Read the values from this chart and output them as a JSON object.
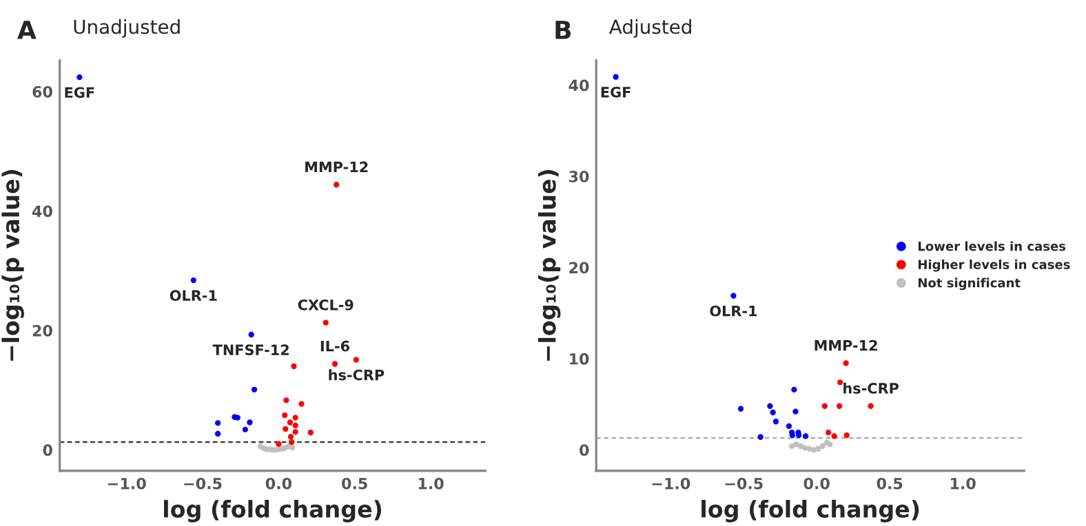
{
  "chart_data": [
    {
      "type": "scatter",
      "title": "Unadjusted",
      "xlabel": "log (fold change)",
      "ylabel": "−log₁₀(p value)",
      "annotations": [
        "A",
        {
          "text": "EGF",
          "x": -1.31,
          "y": 62.4
        },
        {
          "text": "MMP-12",
          "x": 0.38,
          "y": 44.4
        },
        {
          "text": "OLR-1",
          "x": -0.56,
          "y": 28.4
        },
        {
          "text": "CXCL-9",
          "x": 0.31,
          "y": 21.3
        },
        {
          "text": "TNFSF-12",
          "x": -0.18,
          "y": 19.3
        },
        {
          "text": "IL-6",
          "x": 0.37,
          "y": 14.4
        },
        {
          "text": "hs-CRP",
          "x": 0.51,
          "y": 15.1
        }
      ],
      "series": [
        {
          "color": "#0000ff",
          "x": [
            -1.31,
            -0.56,
            -0.18,
            -0.16,
            -0.4,
            -0.4,
            -0.29,
            -0.27,
            -0.19,
            -0.22
          ],
          "values": [
            62.4,
            28.4,
            19.3,
            10.1,
            4.5,
            2.7,
            5.5,
            5.4,
            4.6,
            3.4
          ]
        },
        {
          "color": "#ff0000",
          "x": [
            0.38,
            0.31,
            0.37,
            0.51,
            0.1,
            0.05,
            0.15,
            0.04,
            0.11,
            0.075,
            0.11,
            0.045,
            0.11,
            0.08,
            0.21,
            0.085,
            0.0
          ],
          "values": [
            44.4,
            21.3,
            14.4,
            15.1,
            14.0,
            8.3,
            7.7,
            5.8,
            5.4,
            4.6,
            4.1,
            3.5,
            3.0,
            2.2,
            2.9,
            1.3,
            1.0
          ]
        },
        {
          "color": "#c0c0c0",
          "x": [
            -0.12,
            -0.1,
            -0.08,
            -0.06,
            -0.04,
            -0.02,
            0.0,
            0.02,
            0.04,
            0.06,
            0.08,
            0.09
          ],
          "values": [
            0.6,
            0.3,
            0.1,
            0.1,
            0.0,
            0.0,
            0.1,
            0.2,
            0.3,
            0.5,
            0.8,
            0.4
          ]
        }
      ],
      "ref_lines": [
        {
          "axis": "y",
          "value": 1.3,
          "color": "#333333",
          "line_style": "dashed"
        }
      ],
      "xlim": [
        -1.44,
        1.36
      ],
      "ylim": [
        -3.5,
        65.2
      ],
      "xticks": [
        {
          "value": -1.0,
          "label": "−1.0"
        },
        {
          "value": -0.5,
          "label": "−0.5"
        },
        {
          "value": 0.0,
          "label": "0.0"
        },
        {
          "value": 0.5,
          "label": "0.5"
        },
        {
          "value": 1.0,
          "label": "1.0"
        }
      ],
      "yticks": [
        0,
        20,
        40,
        60
      ],
      "grid": false,
      "legend": false,
      "marker": "circle"
    },
    {
      "type": "scatter",
      "title": "Adjusted",
      "xlabel": "log (fold change)",
      "ylabel": "−log₁₀(p value)",
      "annotations": [
        "B",
        {
          "text": "EGF",
          "x": -1.376,
          "y": 40.9
        },
        {
          "text": "OLR-1",
          "x": -0.57,
          "y": 16.9
        },
        {
          "text": "MMP-12",
          "x": 0.2,
          "y": 9.5
        },
        {
          "text": "hs-CRP",
          "x": 0.37,
          "y": 4.8
        }
      ],
      "series": [
        {
          "name": "Lower levels in cases",
          "color": "#0000ff",
          "x": [
            -1.376,
            -0.57,
            -0.52,
            -0.155,
            -0.32,
            -0.3,
            -0.28,
            -0.145,
            -0.385,
            -0.19,
            -0.17,
            -0.167,
            -0.126,
            -0.123,
            -0.076
          ],
          "values": [
            40.9,
            16.9,
            4.5,
            6.6,
            4.8,
            4.1,
            3.1,
            4.2,
            1.4,
            2.6,
            1.9,
            1.6,
            1.9,
            1.6,
            1.5
          ]
        },
        {
          "name": "Higher levels in cases",
          "color": "#ff0000",
          "x": [
            0.2,
            0.16,
            0.055,
            0.155,
            0.37,
            0.08,
            0.12,
            0.205
          ],
          "values": [
            9.5,
            7.4,
            4.8,
            4.8,
            4.8,
            1.9,
            1.5,
            1.6
          ]
        },
        {
          "name": "Not significant",
          "color": "#c0c0c0",
          "x": [
            -0.17,
            -0.14,
            -0.11,
            -0.08,
            -0.05,
            -0.02,
            0.01,
            0.04,
            0.07,
            0.09
          ],
          "values": [
            0.4,
            0.6,
            0.4,
            0.2,
            0.1,
            0.0,
            0.1,
            0.4,
            0.8,
            0.6
          ]
        }
      ],
      "ref_lines": [
        {
          "axis": "y",
          "value": 1.3,
          "color": "#aaaaaa",
          "line_style": "dashed"
        }
      ],
      "xlim": [
        -1.51,
        1.42
      ],
      "ylim": [
        -2.3,
        42.7
      ],
      "xticks": [
        {
          "value": -1.0,
          "label": "−1.0"
        },
        {
          "value": -0.5,
          "label": "−0.5"
        },
        {
          "value": 0.0,
          "label": "0.0"
        },
        {
          "value": 0.5,
          "label": "0.5"
        },
        {
          "value": 1.0,
          "label": "1.0"
        }
      ],
      "yticks": [
        0,
        10,
        20,
        30,
        40
      ],
      "grid": false,
      "legend": "right",
      "marker": "circle"
    }
  ]
}
